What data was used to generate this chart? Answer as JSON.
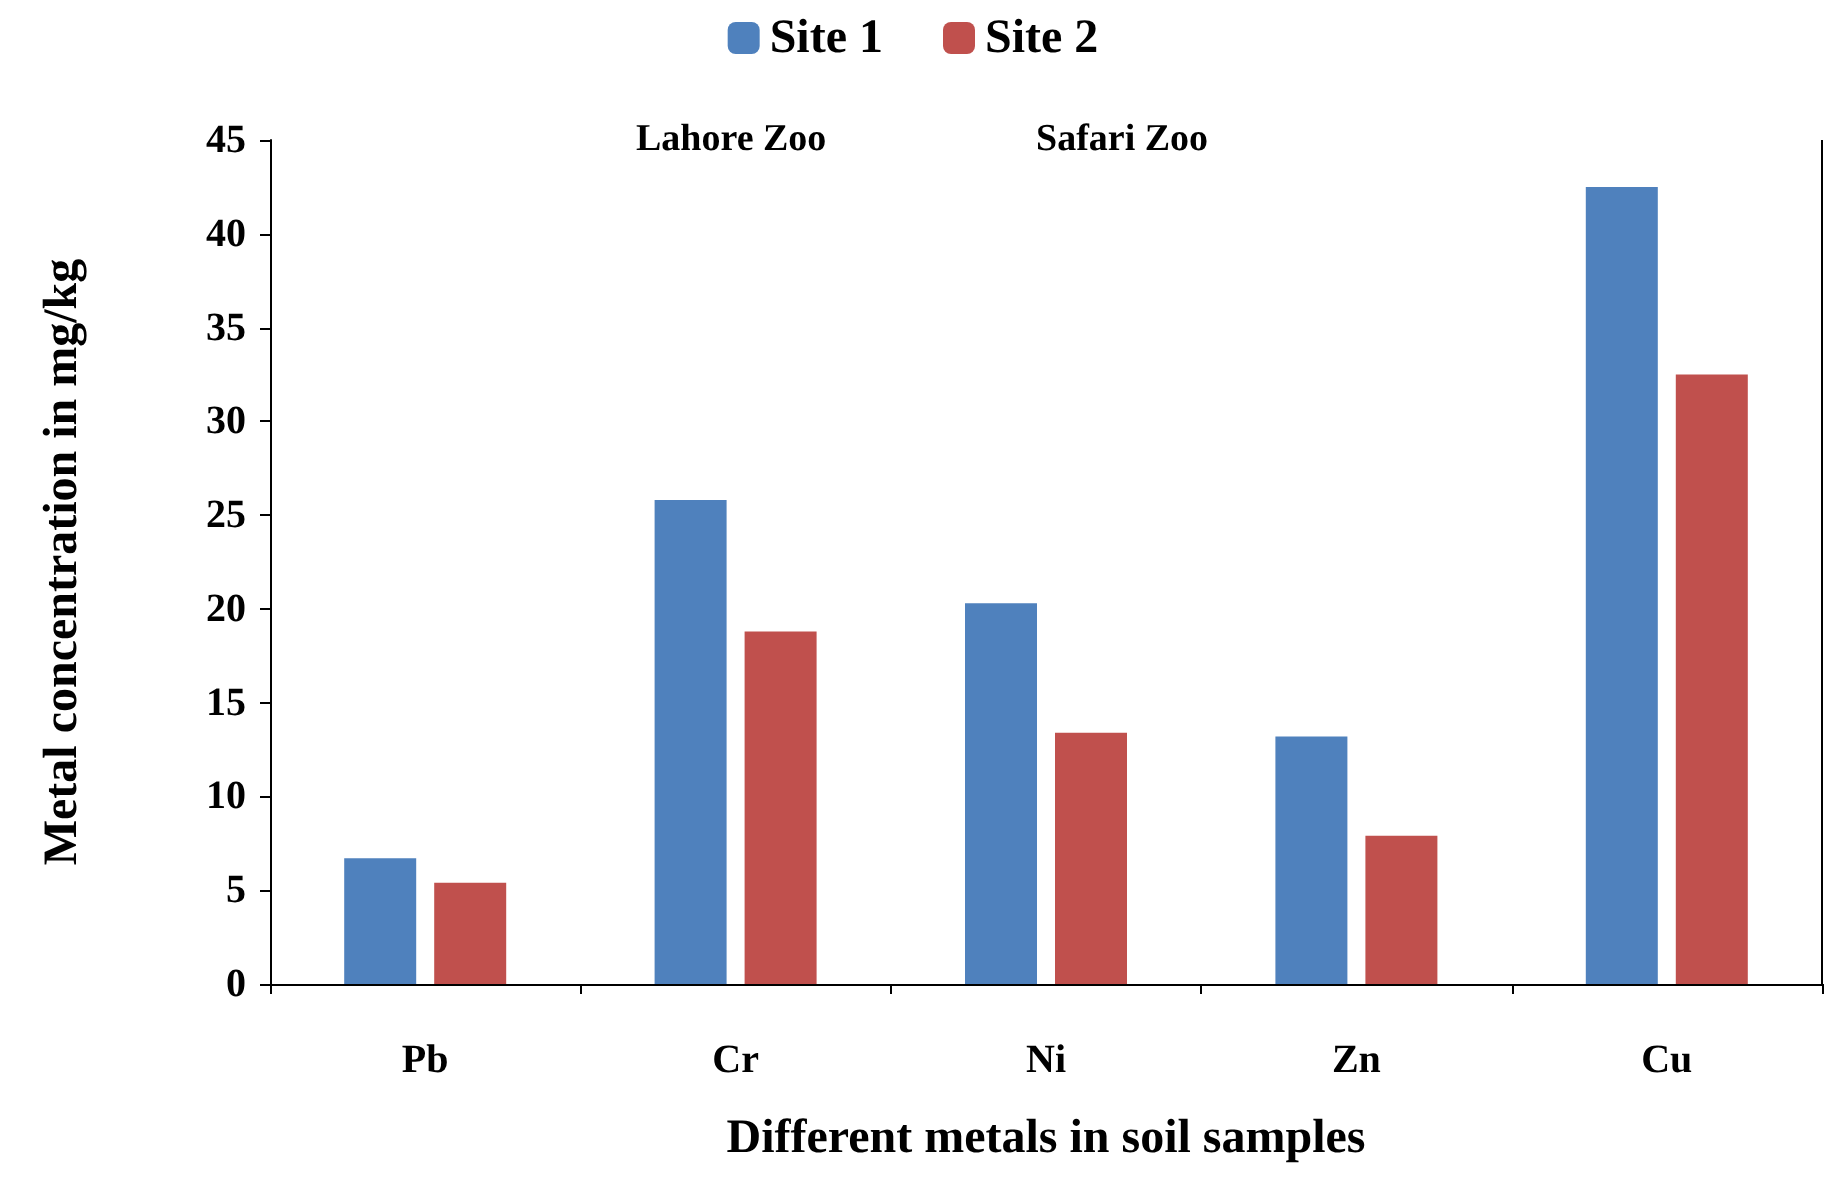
{
  "chart_data": {
    "type": "bar",
    "xlabel": "Different metals in soil samples",
    "ylabel": "Metal concentration in mg/kg",
    "categories": [
      "Pb",
      "Cr",
      "Ni",
      "Zn",
      "Cu"
    ],
    "series": [
      {
        "name": "Site 1",
        "color": "#4f81bd",
        "values": [
          6.7,
          25.8,
          20.3,
          13.2,
          42.5
        ]
      },
      {
        "name": "Site 2",
        "color": "#c0504d",
        "values": [
          5.4,
          18.8,
          13.4,
          7.9,
          32.5
        ]
      }
    ],
    "ylim": [
      0,
      45
    ],
    "yticks": [
      0,
      5,
      10,
      15,
      20,
      25,
      30,
      35,
      40,
      45
    ],
    "grid": false,
    "legend": "top",
    "annotations": [
      "Lahore Zoo",
      "Safari Zoo"
    ]
  }
}
